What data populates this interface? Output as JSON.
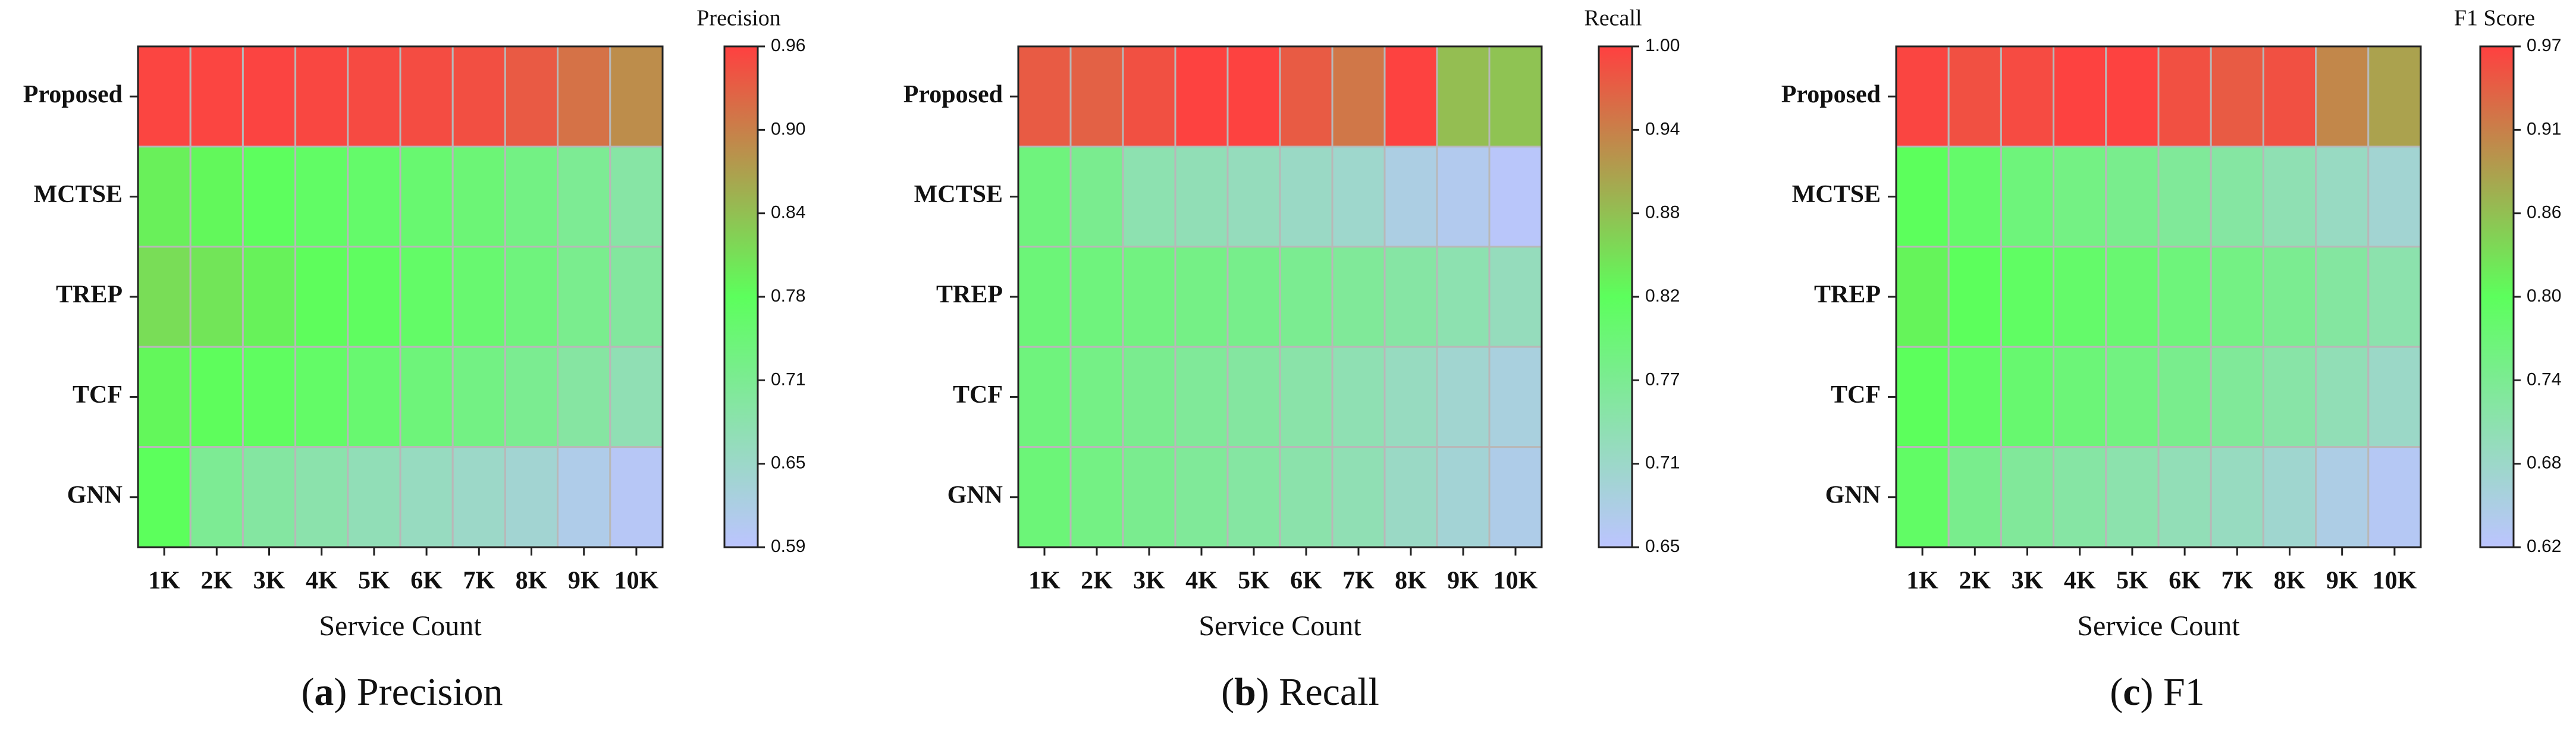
{
  "chart_data": [
    {
      "type": "heatmap",
      "panel_tag": "a",
      "caption": "Precision",
      "colorbar_title": "Precision",
      "xlabel": "Service Count",
      "ylabel": "",
      "x": [
        "1K",
        "2K",
        "3K",
        "4K",
        "5K",
        "6K",
        "7K",
        "8K",
        "9K",
        "10K"
      ],
      "y": [
        "Proposed",
        "MCTSE",
        "TREP",
        "TCF",
        "GNN"
      ],
      "range": [
        0.59,
        0.96
      ],
      "colorbar_ticks": [
        "0.96",
        "0.90",
        "0.84",
        "0.78",
        "0.71",
        "0.65",
        "0.59"
      ],
      "values": [
        [
          0.955,
          0.955,
          0.956,
          0.953,
          0.95,
          0.948,
          0.945,
          0.935,
          0.912,
          0.885
        ],
        [
          0.79,
          0.782,
          0.773,
          0.765,
          0.759,
          0.752,
          0.745,
          0.73,
          0.712,
          0.692
        ],
        [
          0.808,
          0.8,
          0.788,
          0.777,
          0.77,
          0.762,
          0.752,
          0.738,
          0.718,
          0.7
        ],
        [
          0.783,
          0.777,
          0.77,
          0.762,
          0.752,
          0.741,
          0.73,
          0.715,
          0.695,
          0.675
        ],
        [
          0.775,
          0.712,
          0.697,
          0.684,
          0.672,
          0.661,
          0.652,
          0.641,
          0.615,
          0.6
        ]
      ]
    },
    {
      "type": "heatmap",
      "panel_tag": "b",
      "caption": "Recall",
      "colorbar_title": "Recall",
      "xlabel": "Service Count",
      "ylabel": "",
      "x": [
        "1K",
        "2K",
        "3K",
        "4K",
        "5K",
        "6K",
        "7K",
        "8K",
        "9K",
        "10K"
      ],
      "y": [
        "Proposed",
        "MCTSE",
        "TREP",
        "TCF",
        "GNN"
      ],
      "range": [
        0.65,
        1.0
      ],
      "colorbar_ticks": [
        "1.00",
        "0.94",
        "0.88",
        "0.82",
        "0.77",
        "0.71",
        "0.65"
      ],
      "values": [
        [
          0.975,
          0.97,
          0.985,
          0.998,
          0.998,
          0.975,
          0.95,
          0.998,
          0.885,
          0.88
        ],
        [
          0.79,
          0.77,
          0.735,
          0.728,
          0.722,
          0.712,
          0.705,
          0.68,
          0.668,
          0.655
        ],
        [
          0.795,
          0.79,
          0.785,
          0.78,
          0.775,
          0.768,
          0.76,
          0.748,
          0.735,
          0.722
        ],
        [
          0.79,
          0.78,
          0.77,
          0.76,
          0.752,
          0.742,
          0.732,
          0.718,
          0.7,
          0.685
        ],
        [
          0.795,
          0.782,
          0.77,
          0.76,
          0.75,
          0.74,
          0.73,
          0.712,
          0.695,
          0.675
        ]
      ]
    },
    {
      "type": "heatmap",
      "panel_tag": "c",
      "caption": "F1",
      "colorbar_title": "F1 Score",
      "xlabel": "Service Count",
      "ylabel": "",
      "x": [
        "1K",
        "2K",
        "3K",
        "4K",
        "5K",
        "6K",
        "7K",
        "8K",
        "9K",
        "10K"
      ],
      "y": [
        "Proposed",
        "MCTSE",
        "TREP",
        "TCF",
        "GNN"
      ],
      "range": [
        0.62,
        0.97
      ],
      "colorbar_ticks": [
        "0.97",
        "0.91",
        "0.86",
        "0.80",
        "0.74",
        "0.68",
        "0.62"
      ],
      "values": [
        [
          0.965,
          0.955,
          0.96,
          0.968,
          0.968,
          0.955,
          0.945,
          0.955,
          0.905,
          0.88
        ],
        [
          0.795,
          0.78,
          0.762,
          0.752,
          0.742,
          0.73,
          0.72,
          0.702,
          0.685,
          0.668
        ],
        [
          0.805,
          0.795,
          0.788,
          0.78,
          0.772,
          0.762,
          0.752,
          0.738,
          0.722,
          0.708
        ],
        [
          0.795,
          0.785,
          0.775,
          0.765,
          0.755,
          0.742,
          0.73,
          0.715,
          0.698,
          0.68
        ],
        [
          0.785,
          0.742,
          0.728,
          0.718,
          0.708,
          0.697,
          0.688,
          0.672,
          0.648,
          0.632
        ]
      ]
    }
  ],
  "colors": {
    "scale_low": "#bcc4ff",
    "scale_mid": "#5cff5c",
    "scale_high": "#ff4040",
    "cell_border": "#b8b8b8",
    "text": "#111111"
  }
}
